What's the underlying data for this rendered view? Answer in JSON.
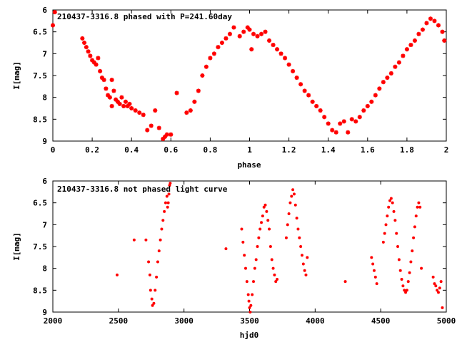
{
  "chart_data": [
    {
      "type": "scatter",
      "title": "210437-3316.8 phased with P=241.60day",
      "xlabel": "phase",
      "ylabel": "I[mag]",
      "xlim": [
        0,
        2
      ],
      "ylim": [
        9,
        6
      ],
      "y_inverted": true,
      "xticks": [
        "0",
        "0.2",
        "0.4",
        "0.6",
        "0.8",
        "1",
        "1.2",
        "1.4",
        "1.6",
        "1.8",
        "2"
      ],
      "yticks": [
        "6",
        "6.5",
        "7",
        "7.5",
        "8",
        "8.5",
        "9"
      ],
      "marker": "star",
      "color": "#ff0000",
      "series": [
        {
          "x": [
            0.0,
            0.01,
            0.15,
            0.16,
            0.17,
            0.18,
            0.19,
            0.2,
            0.21,
            0.22,
            0.23,
            0.24,
            0.25,
            0.26,
            0.27,
            0.28,
            0.29,
            0.3,
            0.3,
            0.31,
            0.32,
            0.33,
            0.34,
            0.35,
            0.36,
            0.37,
            0.38,
            0.39,
            0.4,
            0.42,
            0.44,
            0.46,
            0.48,
            0.5,
            0.52,
            0.54,
            0.56,
            0.57,
            0.58,
            0.6,
            0.63,
            0.68,
            0.7,
            0.72,
            0.74,
            0.76,
            0.78,
            0.8,
            0.82,
            0.84,
            0.86,
            0.88,
            0.9,
            0.92,
            0.95,
            0.97,
            0.99,
            1.0,
            1.01,
            1.02,
            1.04,
            1.06,
            1.08,
            1.1,
            1.12,
            1.14,
            1.16,
            1.18,
            1.2,
            1.22,
            1.24,
            1.26,
            1.28,
            1.3,
            1.32,
            1.34,
            1.36,
            1.38,
            1.4,
            1.42,
            1.44,
            1.46,
            1.48,
            1.5,
            1.52,
            1.54,
            1.56,
            1.58,
            1.6,
            1.62,
            1.64,
            1.66,
            1.68,
            1.7,
            1.72,
            1.74,
            1.76,
            1.78,
            1.8,
            1.82,
            1.84,
            1.86,
            1.88,
            1.9,
            1.92,
            1.94,
            1.96,
            1.98,
            1.99
          ],
          "y": [
            6.35,
            6.05,
            6.65,
            6.75,
            6.85,
            6.95,
            7.05,
            7.15,
            7.2,
            7.25,
            7.1,
            7.4,
            7.55,
            7.6,
            7.8,
            7.95,
            8.0,
            7.6,
            8.2,
            7.85,
            8.05,
            8.1,
            8.15,
            8.0,
            8.2,
            8.1,
            8.2,
            8.15,
            8.25,
            8.3,
            8.35,
            8.4,
            8.75,
            8.65,
            8.3,
            8.7,
            8.95,
            8.9,
            8.85,
            8.85,
            7.9,
            8.35,
            8.3,
            8.1,
            7.85,
            7.5,
            7.3,
            7.1,
            7.0,
            6.85,
            6.75,
            6.65,
            6.55,
            6.4,
            6.6,
            6.5,
            6.4,
            6.45,
            6.9,
            6.55,
            6.6,
            6.55,
            6.5,
            6.7,
            6.8,
            6.9,
            7.0,
            7.1,
            7.25,
            7.4,
            7.55,
            7.7,
            7.85,
            7.95,
            8.1,
            8.2,
            8.3,
            8.45,
            8.6,
            8.75,
            8.8,
            8.6,
            8.55,
            8.8,
            8.5,
            8.55,
            8.45,
            8.3,
            8.2,
            8.1,
            7.95,
            7.8,
            7.65,
            7.55,
            7.45,
            7.3,
            7.2,
            7.05,
            6.9,
            6.8,
            6.7,
            6.55,
            6.45,
            6.3,
            6.2,
            6.25,
            6.35,
            6.5,
            6.7
          ]
        }
      ]
    },
    {
      "type": "scatter",
      "title": "210437-3316.8 not phased light curve",
      "xlabel": "hjd0",
      "ylabel": "I[mag]",
      "xlim": [
        2000,
        5000
      ],
      "ylim": [
        9,
        6
      ],
      "y_inverted": true,
      "xticks": [
        "2000",
        "2500",
        "3000",
        "3500",
        "4000",
        "4500",
        "5000"
      ],
      "yticks": [
        "6",
        "6.5",
        "7",
        "7.5",
        "8",
        "8.5",
        "9"
      ],
      "marker": "dot",
      "color": "#ff0000",
      "series": [
        {
          "x": [
            2490,
            2620,
            2710,
            2730,
            2740,
            2745,
            2755,
            2760,
            2770,
            2780,
            2790,
            2800,
            2810,
            2820,
            2830,
            2840,
            2850,
            2860,
            2870,
            2875,
            2880,
            2885,
            2890,
            2895,
            3320,
            3440,
            3450,
            3460,
            3470,
            3480,
            3490,
            3495,
            3500,
            3505,
            3510,
            3520,
            3530,
            3540,
            3550,
            3560,
            3570,
            3580,
            3590,
            3600,
            3610,
            3620,
            3630,
            3640,
            3650,
            3660,
            3670,
            3680,
            3690,
            3700,
            3710,
            3780,
            3790,
            3800,
            3810,
            3820,
            3830,
            3840,
            3850,
            3860,
            3870,
            3880,
            3890,
            3900,
            3910,
            3920,
            3930,
            3940,
            4230,
            4430,
            4440,
            4450,
            4460,
            4470,
            4520,
            4530,
            4540,
            4550,
            4560,
            4570,
            4580,
            4590,
            4600,
            4610,
            4620,
            4630,
            4640,
            4650,
            4660,
            4670,
            4680,
            4690,
            4700,
            4710,
            4720,
            4730,
            4740,
            4750,
            4760,
            4770,
            4780,
            4790,
            4800,
            4810,
            4900,
            4910,
            4920,
            4930,
            4940,
            4950,
            4960,
            4970
          ],
          "y": [
            8.15,
            7.35,
            7.35,
            7.85,
            8.15,
            8.5,
            8.7,
            8.85,
            8.8,
            8.5,
            8.2,
            7.85,
            7.6,
            7.35,
            7.1,
            6.9,
            6.7,
            6.5,
            6.35,
            6.6,
            6.5,
            6.3,
            6.1,
            6.05,
            7.55,
            7.1,
            7.4,
            7.7,
            8.0,
            8.3,
            8.6,
            8.75,
            8.9,
            9.0,
            8.85,
            8.6,
            8.3,
            8.0,
            7.8,
            7.5,
            7.3,
            7.1,
            6.95,
            6.8,
            6.6,
            6.55,
            6.7,
            6.9,
            7.1,
            7.5,
            7.8,
            8.0,
            8.15,
            8.3,
            8.25,
            7.3,
            7.0,
            6.75,
            6.5,
            6.35,
            6.2,
            6.3,
            6.55,
            6.85,
            7.1,
            7.3,
            7.5,
            7.7,
            7.9,
            8.05,
            8.15,
            7.75,
            8.3,
            7.75,
            7.9,
            8.05,
            8.2,
            8.35,
            7.4,
            7.2,
            7.0,
            6.8,
            6.6,
            6.45,
            6.4,
            6.5,
            6.7,
            6.9,
            7.2,
            7.5,
            7.8,
            8.05,
            8.25,
            8.4,
            8.5,
            8.55,
            8.5,
            8.3,
            8.1,
            7.85,
            7.6,
            7.3,
            7.05,
            6.8,
            6.6,
            6.5,
            6.6,
            8.0,
            8.2,
            8.35,
            8.4,
            8.5,
            8.55,
            8.45,
            8.3,
            8.9
          ]
        }
      ]
    }
  ]
}
